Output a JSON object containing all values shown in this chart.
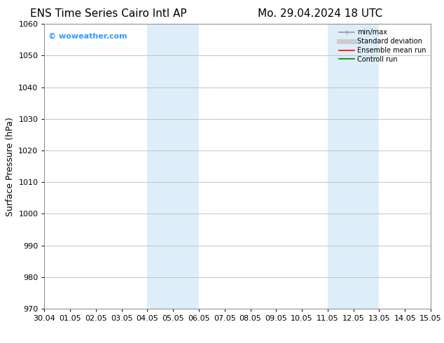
{
  "title_left": "ENS Time Series Cairo Intl AP",
  "title_right": "Mo. 29.04.2024 18 UTC",
  "ylabel": "Surface Pressure (hPa)",
  "ylim_min": 970,
  "ylim_max": 1060,
  "yticks": [
    970,
    980,
    990,
    1000,
    1010,
    1020,
    1030,
    1040,
    1050,
    1060
  ],
  "xtick_labels": [
    "30.04",
    "01.05",
    "02.05",
    "03.05",
    "04.05",
    "05.05",
    "06.05",
    "07.05",
    "08.05",
    "09.05",
    "10.05",
    "11.05",
    "12.05",
    "13.05",
    "14.05",
    "15.05"
  ],
  "shaded_bands": [
    {
      "xstart": 4,
      "xend": 5,
      "color": "#ddeef8"
    },
    {
      "xstart": 5,
      "xend": 6,
      "color": "#ddeef8"
    },
    {
      "xstart": 11,
      "xend": 12,
      "color": "#ddeef8"
    },
    {
      "xstart": 12,
      "xend": 13,
      "color": "#ddeef8"
    }
  ],
  "watermark_text": "© woweather.com",
  "watermark_color": "#3399ff",
  "legend_items": [
    {
      "label": "min/max",
      "color": "#999999",
      "lw": 1.2,
      "linestyle": "-"
    },
    {
      "label": "Standard deviation",
      "color": "#cccccc",
      "lw": 5,
      "linestyle": "-"
    },
    {
      "label": "Ensemble mean run",
      "color": "red",
      "lw": 1.2,
      "linestyle": "-"
    },
    {
      "label": "Controll run",
      "color": "green",
      "lw": 1.2,
      "linestyle": "-"
    }
  ],
  "bg_color": "#ffffff",
  "grid_color": "#bbbbbb",
  "title_fontsize": 11,
  "axis_label_fontsize": 9,
  "tick_fontsize": 8,
  "watermark_fontsize": 8
}
